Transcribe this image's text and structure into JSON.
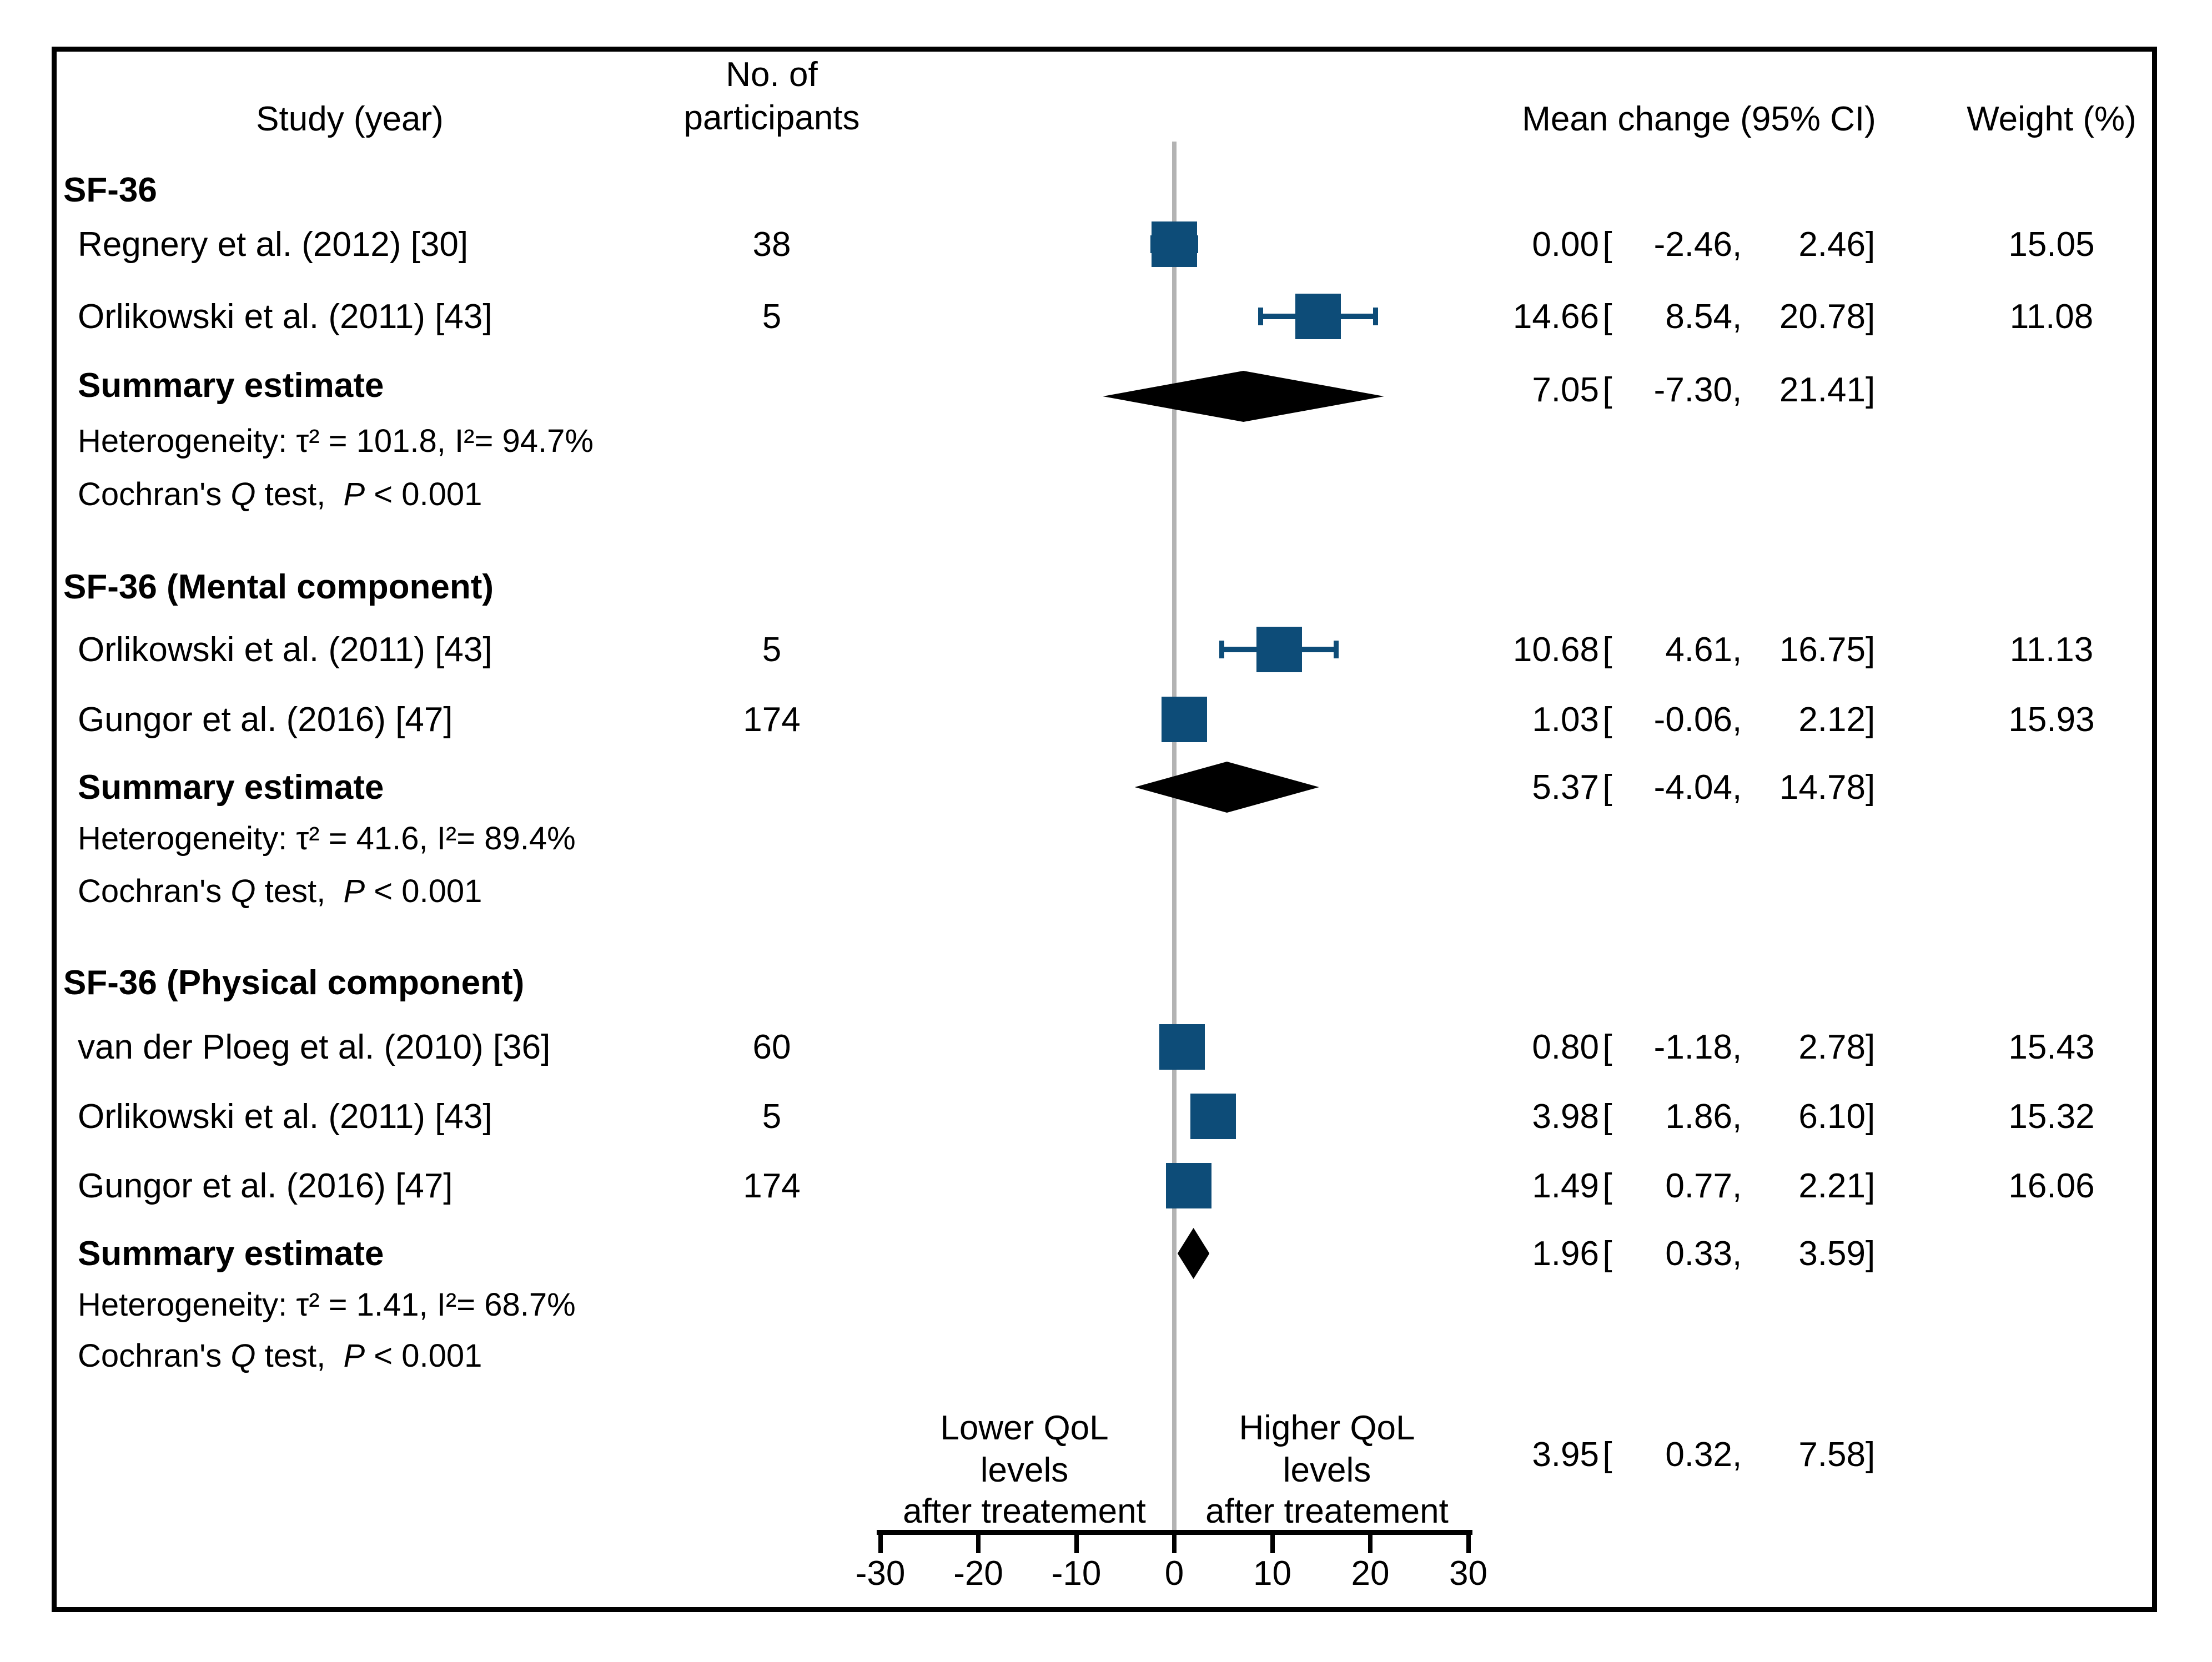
{
  "header": {
    "study_col": "Study (year)",
    "participants_col_line1": "No. of",
    "participants_col_line2": "participants",
    "mean_col": "Mean change (95% CI)",
    "weight_col": "Weight (%)"
  },
  "punct": {
    "open": "[",
    "comma": ",",
    "close": "]"
  },
  "labels": {
    "summary": "Summary estimate",
    "cochran_pre": "Cochran's ",
    "cochran_q": "Q",
    "cochran_post": " test,  ",
    "cochran_p": "P",
    "cochran_rest": " < 0.001",
    "axis_left_1": "Lower QoL",
    "axis_left_2": "levels",
    "axis_left_3": "after treatement",
    "axis_right_1": "Higher QoL",
    "axis_right_2": "levels",
    "axis_right_3": "after treatement"
  },
  "colors": {
    "square_blue": "#0d4c78",
    "diamond_black": "#000000",
    "zero_line_gray": "#b3b3b3"
  },
  "chart_data": {
    "type": "forest",
    "xlabel_ticks": [
      -30,
      -20,
      -10,
      0,
      10,
      20,
      30
    ],
    "x_range": [
      -30,
      30
    ],
    "zero_reference": 0,
    "sections": [
      {
        "title": "SF-36",
        "studies": [
          {
            "study": "Regnery et al. (2012) [30]",
            "participants": "38",
            "mean": "0.00",
            "lo": "-2.46",
            "hi": "2.46",
            "weight": "15.05"
          },
          {
            "study": "Orlikowski et al. (2011) [43]",
            "participants": "5",
            "mean": "14.66",
            "lo": "8.54",
            "hi": "20.78",
            "weight": "11.08"
          }
        ],
        "summary": {
          "mean": "7.05",
          "lo": "-7.30",
          "hi": "21.41"
        },
        "heterogeneity": "Heterogeneity: τ² = 101.8, I²= 94.7%"
      },
      {
        "title": "SF-36 (Mental component)",
        "studies": [
          {
            "study": "Orlikowski et al. (2011) [43]",
            "participants": "5",
            "mean": "10.68",
            "lo": "4.61",
            "hi": "16.75",
            "weight": "11.13"
          },
          {
            "study": "Gungor et al. (2016) [47]",
            "participants": "174",
            "mean": "1.03",
            "lo": "-0.06",
            "hi": "2.12",
            "weight": "15.93"
          }
        ],
        "summary": {
          "mean": "5.37",
          "lo": "-4.04",
          "hi": "14.78"
        },
        "heterogeneity": "Heterogeneity: τ² = 41.6, I²= 89.4%"
      },
      {
        "title": "SF-36 (Physical component)",
        "studies": [
          {
            "study": "van der Ploeg et al. (2010) [36]",
            "participants": "60",
            "mean": "0.80",
            "lo": "-1.18",
            "hi": "2.78",
            "weight": "15.43"
          },
          {
            "study": "Orlikowski et al. (2011) [43]",
            "participants": "5",
            "mean": "3.98",
            "lo": "1.86",
            "hi": "6.10",
            "weight": "15.32"
          },
          {
            "study": "Gungor et al. (2016) [47]",
            "participants": "174",
            "mean": "1.49",
            "lo": "0.77",
            "hi": "2.21",
            "weight": "16.06"
          }
        ],
        "summary": {
          "mean": "1.96",
          "lo": "0.33",
          "hi": "3.59"
        },
        "heterogeneity": "Heterogeneity: τ² = 1.41, I²= 68.7%"
      }
    ],
    "overall": {
      "mean": "3.95",
      "lo": "0.32",
      "hi": "7.58"
    }
  }
}
